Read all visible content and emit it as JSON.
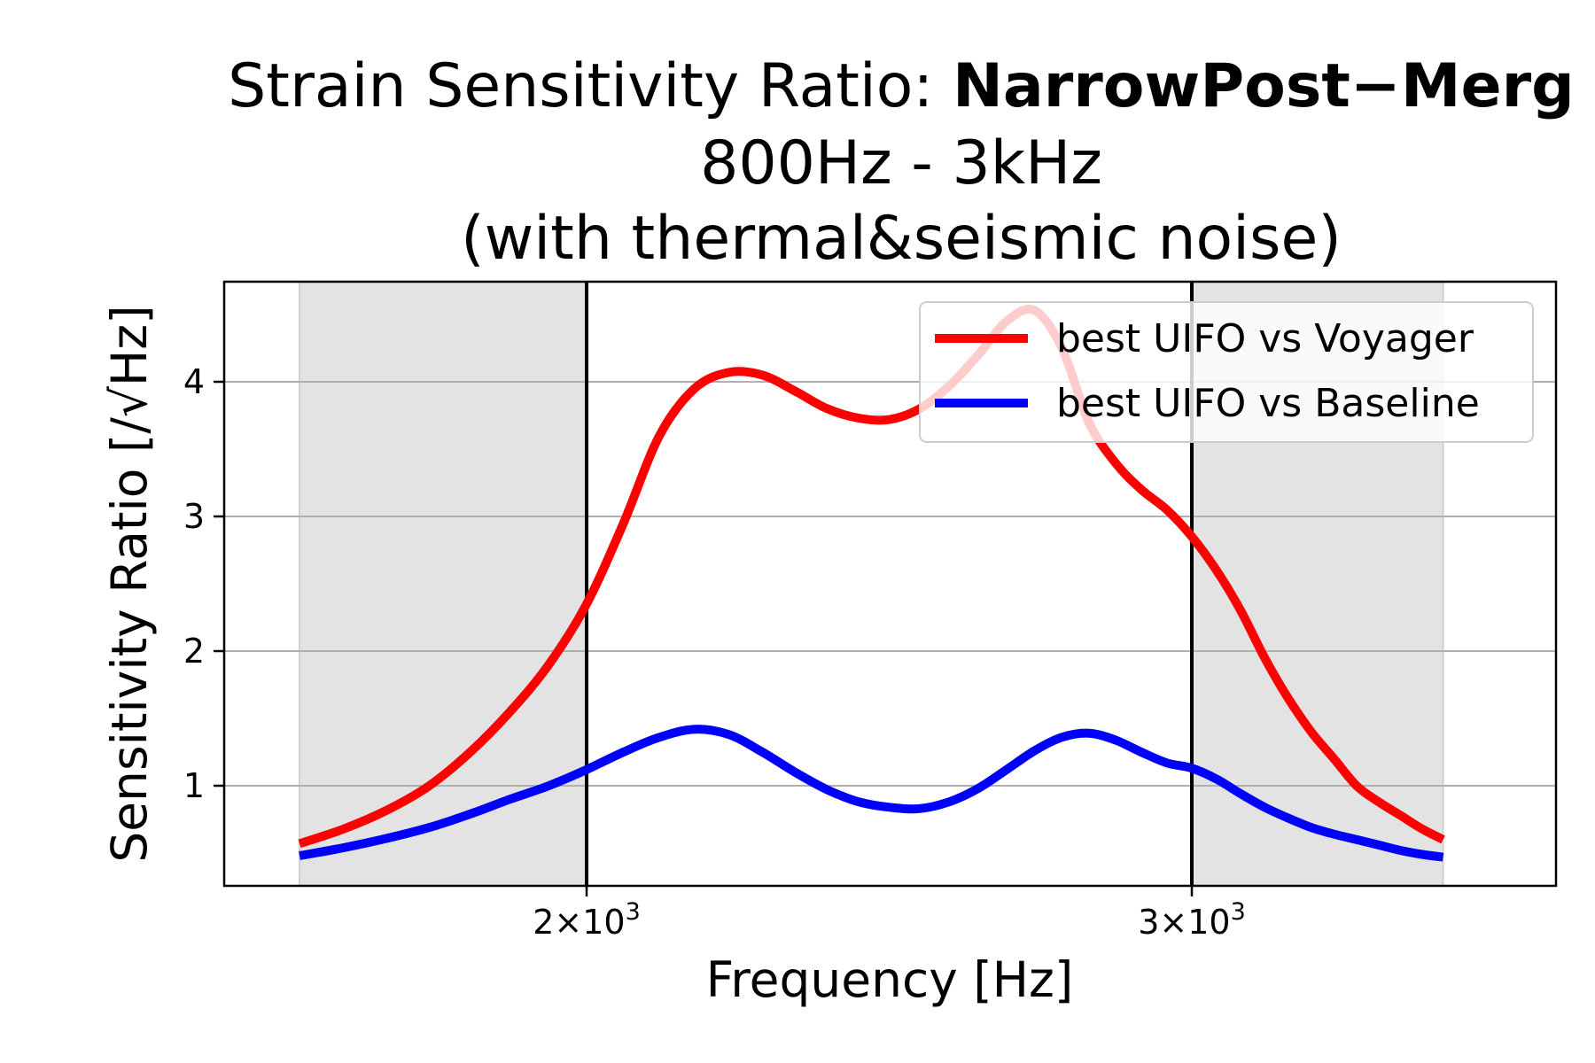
{
  "chart_data": {
    "type": "line",
    "title": {
      "line1_prefix": "Strain Sensitivity Ratio: ",
      "line1_bold": "NarrowPost−Merg",
      "line2": "800Hz - 3kHz",
      "line3": "(with thermal&seismic noise)"
    },
    "xlabel": "Frequency [Hz]",
    "ylabel": "Sensitivity Ratio [/√Hz]",
    "x_scale": "log",
    "xlim": [
      1600,
      3600
    ],
    "ylim": [
      0.3,
      4.75
    ],
    "x_ticks": [
      {
        "value": 2000,
        "label_base": "2×10",
        "label_exp": "3"
      },
      {
        "value": 3000,
        "label_base": "3×10",
        "label_exp": "3"
      }
    ],
    "y_ticks": [
      {
        "value": 1,
        "label": "1"
      },
      {
        "value": 2,
        "label": "2"
      },
      {
        "value": 3,
        "label": "3"
      },
      {
        "value": 4,
        "label": "4"
      }
    ],
    "grid": "y-major",
    "legend": "top-right",
    "shaded_regions": [
      {
        "from": 1650,
        "to": 2000
      },
      {
        "from": 3000,
        "to": 3550
      }
    ],
    "vertical_lines": [
      2000,
      3000
    ],
    "series": [
      {
        "name": "best UIFO vs Voyager",
        "color": "#ff0000",
        "x": [
          1650,
          1700,
          1750,
          1800,
          1850,
          1900,
          1950,
          2000,
          2050,
          2100,
          2150,
          2200,
          2250,
          2300,
          2350,
          2400,
          2450,
          2500,
          2550,
          2600,
          2650,
          2700,
          2750,
          2800,
          2850,
          2900,
          2950,
          3000,
          3050,
          3100,
          3150,
          3200,
          3250,
          3300,
          3350,
          3400,
          3450,
          3500,
          3550
        ],
        "y": [
          0.57,
          0.68,
          0.82,
          1.0,
          1.25,
          1.55,
          1.9,
          2.35,
          2.95,
          3.6,
          3.95,
          4.07,
          4.05,
          3.93,
          3.8,
          3.73,
          3.72,
          3.8,
          3.97,
          4.2,
          4.45,
          4.53,
          4.25,
          3.7,
          3.4,
          3.2,
          3.05,
          2.85,
          2.6,
          2.3,
          1.95,
          1.65,
          1.4,
          1.2,
          1.0,
          0.88,
          0.78,
          0.68,
          0.6
        ]
      },
      {
        "name": "best UIFO vs Baseline",
        "color": "#0000ff",
        "x": [
          1650,
          1700,
          1750,
          1800,
          1850,
          1900,
          1950,
          2000,
          2050,
          2100,
          2150,
          2200,
          2250,
          2300,
          2350,
          2400,
          2450,
          2500,
          2550,
          2600,
          2650,
          2700,
          2750,
          2800,
          2850,
          2900,
          2950,
          3000,
          3050,
          3100,
          3150,
          3200,
          3250,
          3300,
          3350,
          3400,
          3450,
          3500,
          3550
        ],
        "y": [
          0.48,
          0.54,
          0.61,
          0.69,
          0.79,
          0.9,
          1.0,
          1.12,
          1.25,
          1.36,
          1.42,
          1.38,
          1.25,
          1.1,
          0.97,
          0.88,
          0.84,
          0.83,
          0.88,
          0.98,
          1.12,
          1.26,
          1.36,
          1.39,
          1.34,
          1.25,
          1.17,
          1.13,
          1.05,
          0.94,
          0.84,
          0.76,
          0.69,
          0.64,
          0.6,
          0.56,
          0.52,
          0.49,
          0.47
        ]
      }
    ]
  }
}
